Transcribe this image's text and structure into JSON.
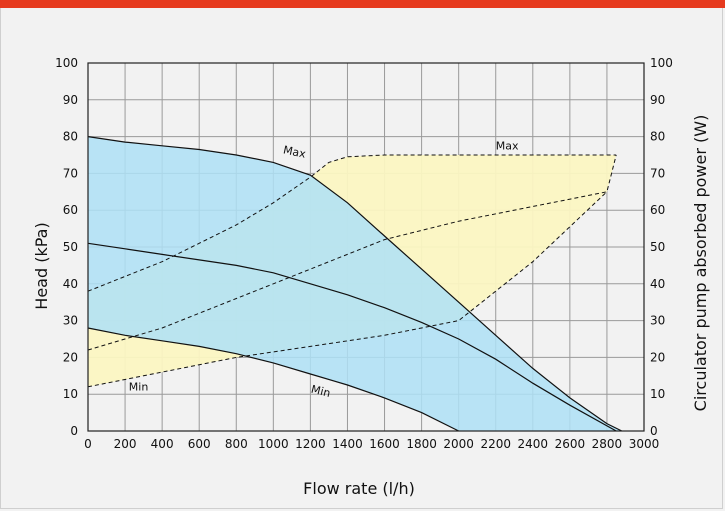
{
  "chart_data": {
    "type": "line",
    "xlabel": "Flow rate (l/h)",
    "ylabel": "Head (kPa)",
    "y2label": "Circulator pump absorbed power (W)",
    "xlim": [
      0,
      3000
    ],
    "ylim": [
      0,
      100
    ],
    "y2lim": [
      0,
      100
    ],
    "xticks": [
      0,
      200,
      400,
      600,
      800,
      1000,
      1200,
      1400,
      1600,
      1800,
      2000,
      2200,
      2400,
      2600,
      2800,
      3000
    ],
    "yticks": [
      0,
      10,
      20,
      30,
      40,
      50,
      60,
      70,
      80,
      90,
      100
    ],
    "grid": true,
    "colors": {
      "head_fill": "#aee0f6",
      "power_fill": "#fbf5c2",
      "accent": "#e63a1e",
      "line": "#111111"
    },
    "head_curves": [
      {
        "label": "Max",
        "x": [
          0,
          200,
          400,
          600,
          800,
          1000,
          1200,
          1400,
          1600,
          1800,
          2000,
          2200,
          2400,
          2600,
          2800,
          2880
        ],
        "y": [
          80,
          78.5,
          77.5,
          76.5,
          75,
          73,
          69.5,
          62,
          53,
          44,
          35,
          26,
          17,
          9,
          2,
          0
        ]
      },
      {
        "label": "",
        "x": [
          0,
          200,
          400,
          600,
          800,
          1000,
          1200,
          1400,
          1600,
          1800,
          2000,
          2200,
          2400,
          2600,
          2850
        ],
        "y": [
          51,
          49.5,
          48,
          46.5,
          45,
          43,
          40,
          37,
          33.5,
          29.5,
          25,
          19.5,
          13,
          7,
          0
        ]
      },
      {
        "label": "Min",
        "x": [
          0,
          200,
          400,
          600,
          800,
          1000,
          1200,
          1400,
          1600,
          1800,
          2000
        ],
        "y": [
          28,
          26,
          24.5,
          23,
          21,
          18.5,
          15.5,
          12.5,
          9,
          5,
          0
        ]
      }
    ],
    "power_curves": [
      {
        "label": "Max",
        "x": [
          0,
          200,
          400,
          600,
          800,
          1000,
          1200,
          1300,
          1400,
          1600,
          2000,
          2400,
          2850
        ],
        "y": [
          38,
          42,
          46,
          51,
          56,
          62,
          69,
          73,
          74.5,
          75,
          75,
          75,
          75
        ]
      },
      {
        "label": "",
        "x": [
          0,
          400,
          800,
          1200,
          1600,
          2000,
          2400,
          2800,
          2850
        ],
        "y": [
          22,
          28,
          36,
          44,
          52,
          57,
          61,
          65,
          75
        ]
      },
      {
        "label": "Min",
        "x": [
          0,
          400,
          800,
          1200,
          1600,
          2000,
          2400,
          2800
        ],
        "y": [
          12,
          16,
          20,
          23,
          26,
          30,
          46,
          65
        ]
      }
    ],
    "annotations": [
      "Max",
      "Min",
      "Max",
      "Min"
    ]
  }
}
